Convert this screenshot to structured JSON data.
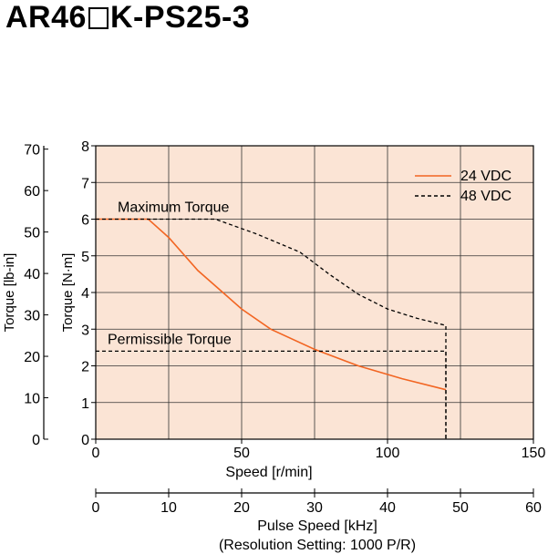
{
  "page_title": {
    "prefix": "AR46",
    "suffix": "K-PS25-3"
  },
  "chart_data": {
    "type": "line",
    "x": {
      "label": "Speed [r/min]",
      "range": [
        0,
        150
      ],
      "ticks": [
        0,
        50,
        100,
        150
      ]
    },
    "y_left": {
      "label": "Torque [N·m]",
      "range": [
        0,
        8
      ],
      "ticks": [
        0,
        1,
        2,
        3,
        4,
        5,
        6,
        7,
        8
      ]
    },
    "y_outer": {
      "label": "Torque [lb-in]",
      "range": [
        0,
        70
      ],
      "ticks": [
        0,
        10,
        20,
        30,
        40,
        50,
        60,
        70
      ]
    },
    "x_secondary": {
      "label": "Pulse Speed [kHz]",
      "label2": "(Resolution Setting: 1000 P/R)",
      "range": [
        0,
        60
      ],
      "ticks": [
        0,
        10,
        20,
        30,
        40,
        50,
        60
      ]
    },
    "grid": true,
    "legend": {
      "placement": "top-right"
    },
    "annotations": [
      "Maximum Torque",
      "Permissible Torque"
    ],
    "series": [
      {
        "name": "24 VDC",
        "style": "solid",
        "color": "#f26522",
        "points": [
          [
            0,
            6.0
          ],
          [
            18,
            6.0
          ],
          [
            25,
            5.5
          ],
          [
            35,
            4.6
          ],
          [
            45,
            3.9
          ],
          [
            50,
            3.55
          ],
          [
            60,
            3.0
          ],
          [
            75,
            2.45
          ],
          [
            90,
            2.0
          ],
          [
            105,
            1.65
          ],
          [
            120,
            1.35
          ]
        ]
      },
      {
        "name": "48 VDC",
        "style": "dashed",
        "color": "#000000",
        "points": [
          [
            0,
            6.0
          ],
          [
            41,
            6.0
          ],
          [
            55,
            5.6
          ],
          [
            70,
            5.1
          ],
          [
            80,
            4.5
          ],
          [
            90,
            3.95
          ],
          [
            100,
            3.55
          ],
          [
            110,
            3.3
          ],
          [
            120,
            3.1
          ],
          [
            120,
            0
          ]
        ]
      },
      {
        "name": "",
        "style": "dashed",
        "color": "#000000",
        "points": [
          [
            0,
            2.4
          ],
          [
            120,
            2.4
          ],
          [
            120,
            0
          ]
        ]
      }
    ],
    "plot_background": "#fbe4d5"
  }
}
